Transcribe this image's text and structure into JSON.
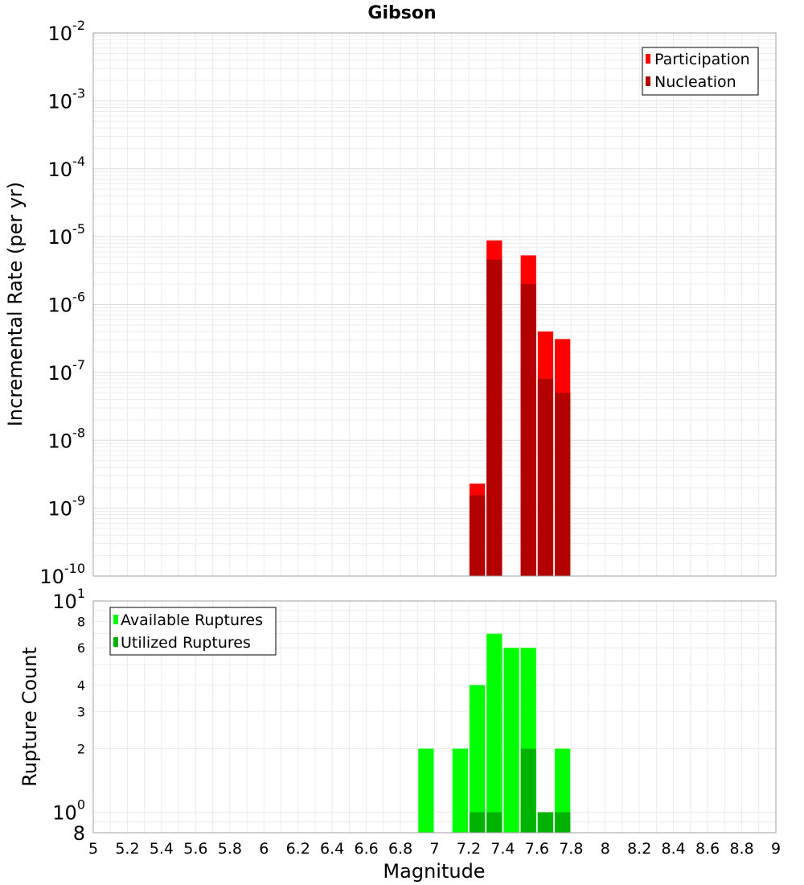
{
  "chart_data": [
    {
      "type": "bar",
      "title": "Gibson",
      "xlabel": "",
      "ylabel": "Incremental Rate (per yr)",
      "yscale": "log",
      "ylim": [
        1e-10,
        0.01
      ],
      "xlim": [
        5,
        9
      ],
      "grid": true,
      "legend_placement": "top-right",
      "ytick_labels": [
        {
          "base": "10",
          "exp": "-2"
        },
        {
          "base": "10",
          "exp": "-3"
        },
        {
          "base": "10",
          "exp": "-4"
        },
        {
          "base": "10",
          "exp": "-5"
        },
        {
          "base": "10",
          "exp": "-6"
        },
        {
          "base": "10",
          "exp": "-7"
        },
        {
          "base": "10",
          "exp": "-8"
        },
        {
          "base": "10",
          "exp": "-9"
        },
        {
          "base": "10",
          "exp": "-10"
        }
      ],
      "series": [
        {
          "name": "Participation",
          "color": "#ff0000",
          "x": [
            7.25,
            7.35,
            7.55,
            7.65,
            7.75
          ],
          "values": [
            2.3e-09,
            8.8e-06,
            5.3e-06,
            4e-07,
            3.1e-07
          ]
        },
        {
          "name": "Nucleation",
          "color": "#b30000",
          "x": [
            7.25,
            7.35,
            7.55,
            7.65,
            7.75
          ],
          "values": [
            1.55e-09,
            4.6e-06,
            2e-06,
            8e-08,
            5e-08
          ]
        }
      ]
    },
    {
      "type": "bar",
      "title": "",
      "xlabel": "Magnitude",
      "ylabel": "Rupture Count",
      "yscale": "log",
      "ylim": [
        0.8,
        10
      ],
      "xlim": [
        5,
        9
      ],
      "grid": true,
      "legend_placement": "top-left",
      "xtick_labels": [
        "5",
        "5.2",
        "5.4",
        "5.6",
        "5.8",
        "6",
        "6.2",
        "6.4",
        "6.6",
        "6.8",
        "7",
        "7.2",
        "7.4",
        "7.6",
        "7.8",
        "8",
        "8.2",
        "8.4",
        "8.6",
        "8.8",
        "9"
      ],
      "ytick_labels": [
        {
          "value": 10,
          "base": "10",
          "exp": "1"
        },
        {
          "value": 8,
          "base": "8",
          "exp": ""
        },
        {
          "value": 6,
          "base": "6",
          "exp": ""
        },
        {
          "value": 4,
          "base": "4",
          "exp": ""
        },
        {
          "value": 3,
          "base": "3",
          "exp": ""
        },
        {
          "value": 2,
          "base": "2",
          "exp": ""
        },
        {
          "value": 1,
          "base": "10",
          "exp": "0"
        },
        {
          "value": 0.8,
          "base": "8",
          "exp": ""
        }
      ],
      "series": [
        {
          "name": "Available Ruptures",
          "color": "#00ff00",
          "x": [
            6.95,
            7.15,
            7.25,
            7.35,
            7.45,
            7.55,
            7.65,
            7.75
          ],
          "values": [
            2,
            2,
            4,
            7,
            6,
            6,
            1,
            2
          ]
        },
        {
          "name": "Utilized Ruptures",
          "color": "#00b300",
          "x": [
            7.25,
            7.35,
            7.55,
            7.65,
            7.75
          ],
          "values": [
            1,
            1,
            2,
            1,
            1
          ]
        }
      ]
    }
  ]
}
